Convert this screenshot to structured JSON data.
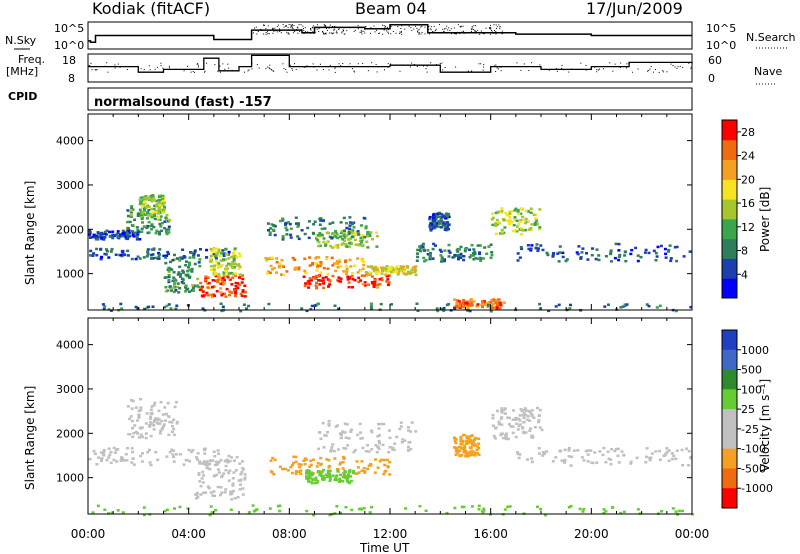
{
  "header": {
    "radar": "Kodiak (fitACF)",
    "beam": "Beam 04",
    "date": "17/Jun/2009"
  },
  "top_panels": {
    "nsky_label": "N.Sky",
    "nsearch_label": "N.Search",
    "freq_label_line1": "Freq.",
    "freq_label_line2": "[MHz]",
    "nave_label": "Nave",
    "cpid_label": "CPID",
    "cpid_text": "normalsound (fast) -157",
    "noise_ticks_left": [
      "10^5",
      "10^0"
    ],
    "noise_ticks_right": [
      "10^5",
      "10^0"
    ],
    "freq_ticks": [
      "18",
      "8"
    ],
    "nave_ticks": [
      "60",
      "0"
    ]
  },
  "colors": {
    "power_scale": [
      "#0000ff",
      "#1c3fb0",
      "#2e7d5b",
      "#3aa54a",
      "#a5c52a",
      "#f5e41f",
      "#f5a020",
      "#f06a10",
      "#ff0000"
    ],
    "velocity_scale": [
      "#2040c0",
      "#3f69c8",
      "#2e8a2e",
      "#66cc33",
      "#c0c0c0",
      "#c0c0c0",
      "#f5a020",
      "#f06a10",
      "#ff0000"
    ]
  },
  "chart_data": [
    {
      "type": "heatmap",
      "panel": "power",
      "ylabel": "Slant Range [km]",
      "xlabel": "",
      "xlim": [
        "00:00",
        "00:00"
      ],
      "ylim": [
        180,
        4600
      ],
      "yticks": [
        "1000",
        "2000",
        "3000",
        "4000"
      ],
      "xticks": [
        "00:00",
        "04:00",
        "08:00",
        "12:00",
        "16:00",
        "20:00",
        "00:00"
      ],
      "colorbar_label": "Power [dB]",
      "colorbar_ticks": [
        "4",
        "8",
        "12",
        "16",
        "20",
        "24",
        "28"
      ],
      "colorbar_range": [
        0,
        30
      ],
      "regions": [
        {
          "t0": 0.0,
          "t1": 5.6,
          "r0": 1350,
          "r1": 1600,
          "value": 6
        },
        {
          "t0": 0.0,
          "t1": 2.0,
          "r0": 1800,
          "r1": 2000,
          "value": 5
        },
        {
          "t0": 1.5,
          "t1": 3.2,
          "r0": 1900,
          "r1": 2600,
          "value": 10
        },
        {
          "t0": 2.0,
          "t1": 3.0,
          "r0": 2300,
          "r1": 2800,
          "value": 14
        },
        {
          "t0": 3.0,
          "t1": 4.4,
          "r0": 600,
          "r1": 1400,
          "value": 10
        },
        {
          "t0": 4.4,
          "t1": 6.2,
          "r0": 500,
          "r1": 1000,
          "value": 26
        },
        {
          "t0": 4.8,
          "t1": 6.0,
          "r0": 1000,
          "r1": 1600,
          "value": 16
        },
        {
          "t0": 7.0,
          "t1": 11.0,
          "r0": 1000,
          "r1": 1400,
          "value": 22
        },
        {
          "t0": 8.5,
          "t1": 12.0,
          "r0": 700,
          "r1": 1000,
          "value": 27
        },
        {
          "t0": 9.0,
          "t1": 11.5,
          "r0": 1600,
          "r1": 2000,
          "value": 14
        },
        {
          "t0": 11.0,
          "t1": 13.0,
          "r0": 1000,
          "r1": 1200,
          "value": 18
        },
        {
          "t0": 7.0,
          "t1": 11.0,
          "r0": 1800,
          "r1": 2300,
          "value": 8
        },
        {
          "t0": 13.0,
          "t1": 16.0,
          "r0": 1300,
          "r1": 1700,
          "value": 8
        },
        {
          "t0": 14.5,
          "t1": 16.5,
          "r0": 250,
          "r1": 450,
          "value": 24
        },
        {
          "t0": 16.0,
          "t1": 18.0,
          "r0": 1900,
          "r1": 2500,
          "value": 16
        },
        {
          "t0": 17.0,
          "t1": 24.0,
          "r0": 1300,
          "r1": 1700,
          "value": 6
        },
        {
          "t0": 13.5,
          "t1": 14.3,
          "r0": 2000,
          "r1": 2400,
          "value": 6
        },
        {
          "t0": 0.0,
          "t1": 24.0,
          "r0": 180,
          "r1": 350,
          "value": 8
        }
      ]
    },
    {
      "type": "heatmap",
      "panel": "velocity",
      "ylabel": "Slant Range [km]",
      "xlabel": "Time UT",
      "xlim": [
        "00:00",
        "00:00"
      ],
      "ylim": [
        180,
        4600
      ],
      "yticks": [
        "1000",
        "2000",
        "3000",
        "4000"
      ],
      "xticks": [
        "00:00",
        "04:00",
        "08:00",
        "12:00",
        "16:00",
        "20:00",
        "00:00"
      ],
      "colorbar_label": "Velocity [m s⁻¹]",
      "colorbar_ticks": [
        "1000",
        "500",
        "100",
        "25",
        "-25",
        "-100",
        "-500",
        "-1000"
      ],
      "regions": [
        {
          "t0": 0.0,
          "t1": 5.6,
          "r0": 1300,
          "r1": 1700,
          "value": "gray"
        },
        {
          "t0": 1.5,
          "t1": 3.5,
          "r0": 1900,
          "r1": 2800,
          "value": "gray"
        },
        {
          "t0": 4.2,
          "t1": 6.2,
          "r0": 500,
          "r1": 1500,
          "value": "gray"
        },
        {
          "t0": 7.0,
          "t1": 12.0,
          "r0": 1100,
          "r1": 1500,
          "value": "orange"
        },
        {
          "t0": 8.5,
          "t1": 10.5,
          "r0": 900,
          "r1": 1200,
          "value": "green"
        },
        {
          "t0": 9.0,
          "t1": 13.0,
          "r0": 1600,
          "r1": 2300,
          "value": "gray"
        },
        {
          "t0": 14.5,
          "t1": 15.5,
          "r0": 1500,
          "r1": 2000,
          "value": "orange"
        },
        {
          "t0": 16.0,
          "t1": 18.0,
          "r0": 1900,
          "r1": 2600,
          "value": "gray"
        },
        {
          "t0": 17.0,
          "t1": 24.0,
          "r0": 1300,
          "r1": 1700,
          "value": "gray"
        },
        {
          "t0": 0.0,
          "t1": 24.0,
          "r0": 180,
          "r1": 400,
          "value": "green"
        }
      ]
    },
    {
      "type": "line",
      "panel": "noise",
      "series": [
        {
          "x": [
            0,
            0.1,
            0.3,
            4.6,
            5.0,
            6.5,
            8.5,
            9.0,
            11.0,
            12.0,
            13.5,
            17.0,
            20.0,
            24.0
          ],
          "y": [
            0.3,
            0.25,
            0.5,
            0.5,
            0.35,
            0.7,
            0.6,
            0.8,
            0.75,
            0.9,
            0.6,
            0.55,
            0.5,
            0.5
          ]
        }
      ]
    },
    {
      "type": "line",
      "panel": "frequency",
      "series": [
        {
          "x": [
            0,
            1.0,
            2.0,
            3.0,
            4.6,
            5.2,
            6.0,
            6.5,
            8.0,
            12.0,
            14.0,
            16.0,
            18.0,
            20.0,
            21.5,
            24.0
          ],
          "y": [
            0.55,
            0.55,
            0.35,
            0.45,
            0.85,
            0.4,
            0.55,
            0.95,
            0.55,
            0.6,
            0.35,
            0.55,
            0.45,
            0.55,
            0.7,
            0.65
          ]
        }
      ]
    }
  ]
}
